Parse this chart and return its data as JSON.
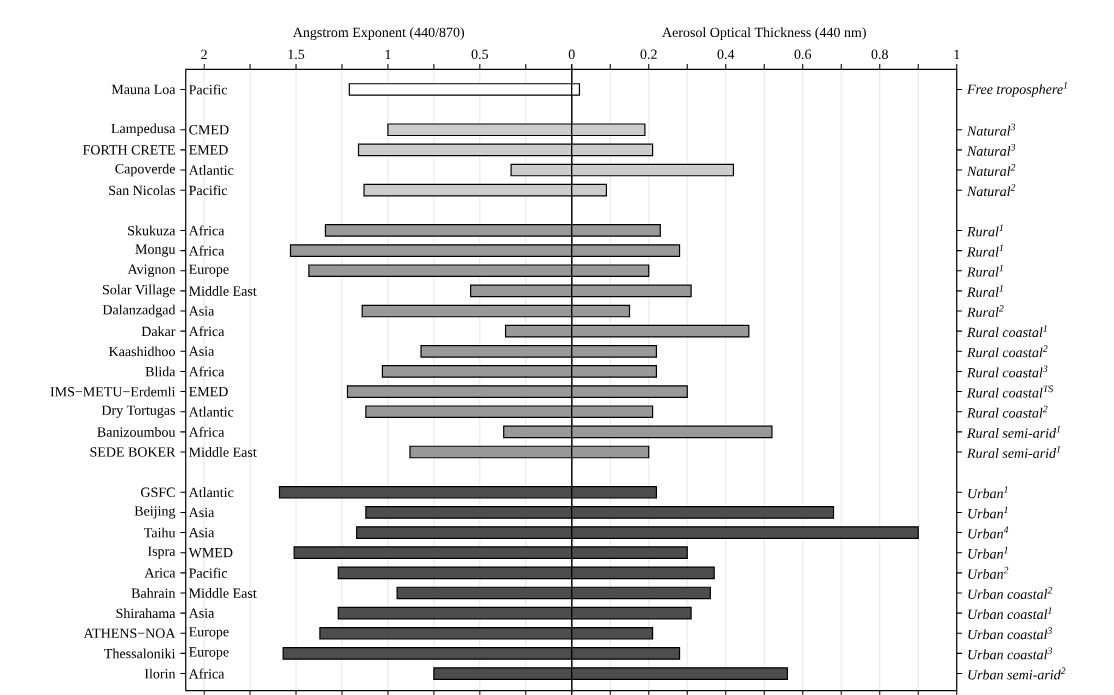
{
  "chart_data": [
    {
      "type": "bar",
      "orientation": "horizontal",
      "xlabel": "Angstrom Exponent (440/870)",
      "grid": "x",
      "xlim": [
        2.1,
        0
      ],
      "xticks": [
        2,
        {
          "value": 1.75,
          "label": null
        },
        1.5,
        {
          "value": 1.25,
          "label": null
        },
        1,
        {
          "value": 0.75,
          "label": null
        },
        0.5,
        {
          "value": 0.25,
          "label": null
        },
        {
          "value": 0,
          "label": null
        }
      ],
      "categories": [
        "Mauna Loa",
        null,
        "Lampedusa",
        "FORTH CRETE",
        "Capoverde",
        "San Nicolas",
        null,
        "Skukuza",
        "Mongu",
        "Avignon",
        "Solar Village",
        "Dalanzadgad",
        "Dakar",
        "Kaashidhoo",
        "Blida",
        "IMS−METU−Erdemli",
        "Dry Tortugas",
        "Banizoumbou",
        "SEDE BOKER",
        null,
        "GSFC",
        "Beijing",
        "Taihu",
        "Ispra",
        "Arica",
        "Bahrain",
        "Shirahama",
        "ATHENS−NOA",
        "Thessaloniki",
        "Ilorin"
      ],
      "values": [
        1.21,
        null,
        1.0,
        1.16,
        0.33,
        1.13,
        null,
        1.34,
        1.53,
        1.43,
        0.55,
        1.14,
        0.36,
        0.82,
        1.03,
        1.22,
        1.12,
        0.37,
        0.88,
        null,
        1.59,
        1.12,
        1.17,
        1.51,
        1.27,
        0.95,
        1.27,
        1.37,
        1.57,
        0.75
      ],
      "colors": [
        "#ffffff",
        null,
        "#cccccc",
        "#cccccc",
        "#cccccc",
        "#cccccc",
        null,
        "#999999",
        "#999999",
        "#999999",
        "#999999",
        "#999999",
        "#999999",
        "#999999",
        "#999999",
        "#999999",
        "#999999",
        "#999999",
        "#999999",
        null,
        "#4d4d4d",
        "#4d4d4d",
        "#4d4d4d",
        "#4d4d4d",
        "#4d4d4d",
        "#4d4d4d",
        "#4d4d4d",
        "#4d4d4d",
        "#4d4d4d",
        "#4d4d4d"
      ],
      "annotations": [
        "Pacific",
        "CMED",
        "EMED",
        "Atlantic",
        "Pacific",
        "Africa",
        "Africa",
        "Europe",
        "Middle East",
        "Asia",
        "Africa",
        "Asia",
        "Africa",
        "EMED",
        "Atlantic",
        "Africa",
        "Middle East",
        "Atlantic",
        "Asia",
        "Asia",
        "WMED",
        "Pacific",
        "Middle East",
        "Asia",
        "Europe",
        "Europe",
        "Africa"
      ]
    },
    {
      "type": "bar",
      "orientation": "horizontal",
      "xlabel": "Aerosol Optical Thickness (440 nm)",
      "grid": "x",
      "xlim": [
        0,
        1
      ],
      "xticks": [
        0,
        {
          "value": 0.1,
          "label": null
        },
        0.2,
        {
          "value": 0.3,
          "label": null
        },
        0.4,
        {
          "value": 0.5,
          "label": null
        },
        0.6,
        {
          "value": 0.7,
          "label": null
        },
        0.8,
        {
          "value": 0.9,
          "label": null
        },
        1
      ],
      "categories": [
        "Free troposphere$^{1}$",
        null,
        "Natural$^{3}$",
        "Natural$^{3}$",
        "Natural$^{2}$",
        "Natural$^{2}$",
        null,
        "Rural$^{1}$",
        "Rural$^{1}$",
        "Rural$^{1}$",
        "Rural$^{1}$",
        "Rural$^{2}$",
        "Rural coastal$^{1}$",
        "Rural coastal$^{2}$",
        "Rural coastal$^{3}$",
        "Rural coastal$^{TS}$",
        "Rural coastal$^{2}$",
        "Rural semi-arid$^{1}$",
        "Rural semi-arid$^{1}$",
        null,
        "Urban$^{1}$",
        "Urban$^{1}$",
        "Urban$^{4}$",
        "Urban$^{1}$",
        "Urban$^{2}$",
        "Urban coastal$^{2}$",
        "Urban coastal$^{1}$",
        "Urban coastal$^{3}$",
        "Urban coastal$^{3}$",
        "Urban semi-arid$^{2}$"
      ],
      "values": [
        0.02,
        null,
        0.19,
        0.21,
        0.42,
        0.09,
        null,
        0.23,
        0.28,
        0.2,
        0.31,
        0.15,
        0.46,
        0.22,
        0.22,
        0.3,
        0.21,
        0.52,
        0.2,
        null,
        0.22,
        0.68,
        0.9,
        0.3,
        0.37,
        0.36,
        0.31,
        0.21,
        0.28,
        0.56
      ],
      "colors": [
        "#ffffff",
        null,
        "#cccccc",
        "#cccccc",
        "#cccccc",
        "#cccccc",
        null,
        "#999999",
        "#999999",
        "#999999",
        "#999999",
        "#999999",
        "#999999",
        "#999999",
        "#999999",
        "#999999",
        "#999999",
        "#999999",
        "#999999",
        null,
        "#4d4d4d",
        "#4d4d4d",
        "#4d4d4d",
        "#4d4d4d",
        "#4d4d4d",
        "#4d4d4d",
        "#4d4d4d",
        "#4d4d4d",
        "#4d4d4d",
        "#4d4d4d"
      ]
    }
  ]
}
